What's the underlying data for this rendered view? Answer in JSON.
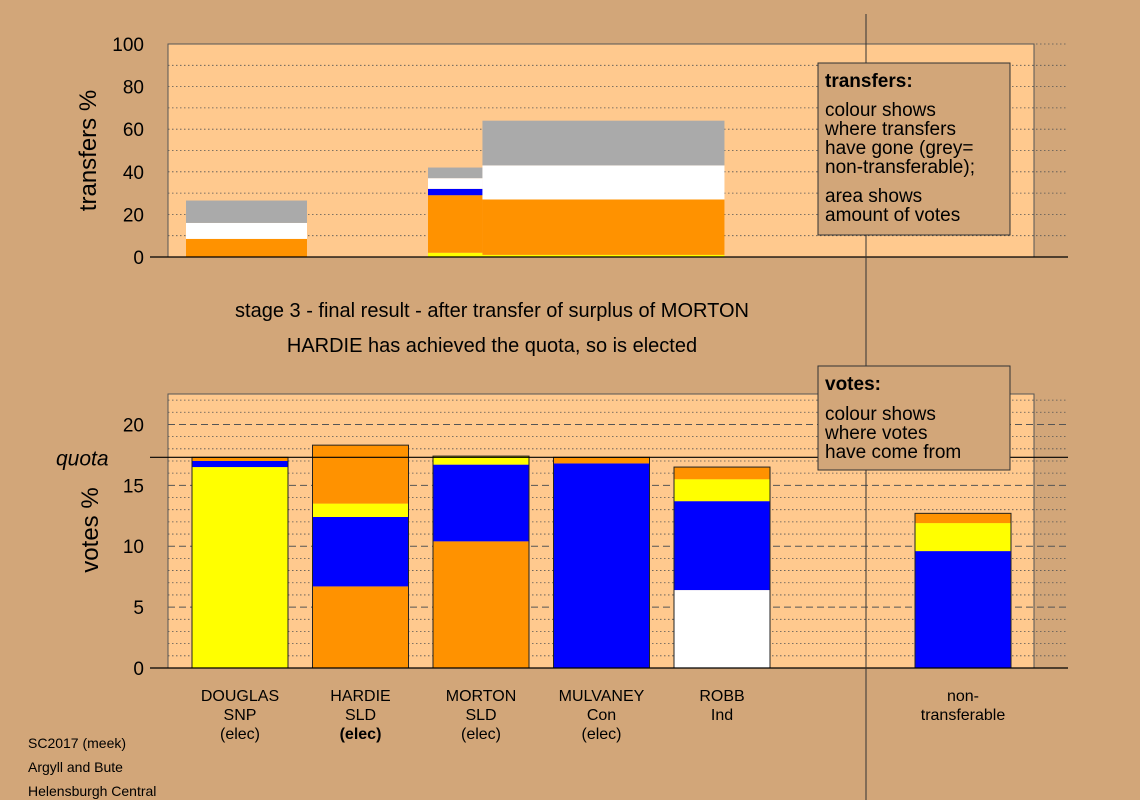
{
  "colors": {
    "background": "#d2a679",
    "plot_bg": "#ffc98e",
    "SNP": "#ffff00",
    "SLD": "#ff9200",
    "Con": "#0000ff",
    "Ind": "#ffffff",
    "non_transferable": "#aaaaaa"
  },
  "captions": {
    "stage": "stage 3 - final result - after transfer of surplus of MORTON",
    "elected": "HARDIE has achieved the quota, so is elected"
  },
  "footer": {
    "line1": "SC2017 (meek)",
    "line2": "Argyll and Bute",
    "line3": "Helensburgh Central"
  },
  "chart_data": [
    {
      "type": "bar",
      "ylabel": "transfers %",
      "ylim": [
        0,
        100
      ],
      "yticks": [
        "0",
        "20",
        "40",
        "60",
        "80",
        "100"
      ],
      "legend": {
        "title": "transfers:",
        "lines": [
          "colour shows",
          "where transfers",
          "have gone (grey=",
          "non-transferable);",
          "area shows",
          "amount of votes"
        ]
      },
      "note": "stacked transfer blocks; each block spans part of the candidate axis",
      "blocks": [
        {
          "x_from": 0,
          "x_to": 1,
          "segments": [
            {
              "party": "SLD",
              "value": 8.5
            },
            {
              "party": "Ind",
              "value": 7.5
            },
            {
              "party": "non_transferable",
              "value": 10.5
            }
          ]
        },
        {
          "x_from": 2,
          "x_to": 2.45,
          "segments": [
            {
              "party": "SNP",
              "value": 2
            },
            {
              "party": "SLD",
              "value": 27
            },
            {
              "party": "Con",
              "value": 3
            },
            {
              "party": "Ind",
              "value": 5
            },
            {
              "party": "non_transferable",
              "value": 5
            }
          ]
        },
        {
          "x_from": 2.45,
          "x_to": 4.45,
          "segments": [
            {
              "party": "SNP",
              "value": 1
            },
            {
              "party": "SLD",
              "value": 26
            },
            {
              "party": "Ind",
              "value": 16
            },
            {
              "party": "non_transferable",
              "value": 21
            }
          ]
        }
      ]
    },
    {
      "type": "bar",
      "ylabel": "votes %",
      "ylim": [
        0,
        22.5
      ],
      "yticks": [
        "0",
        "5",
        "10",
        "15",
        "20"
      ],
      "quota": 17.3,
      "quota_label": "quota",
      "legend": {
        "title": "votes:",
        "lines": [
          "colour shows",
          "where votes",
          "have come from"
        ]
      },
      "categories": [
        {
          "name": "DOUGLAS",
          "party": "SNP",
          "status": "(elec)",
          "bold": false
        },
        {
          "name": "HARDIE",
          "party": "SLD",
          "status": "(elec)",
          "bold": true
        },
        {
          "name": "MORTON",
          "party": "SLD",
          "status": "(elec)",
          "bold": false
        },
        {
          "name": "MULVANEY",
          "party": "Con",
          "status": "(elec)",
          "bold": false
        },
        {
          "name": "ROBB",
          "party": "Ind",
          "status": "",
          "bold": false
        },
        {
          "name": "non-",
          "party": "transferable",
          "status": "",
          "bold": false
        }
      ],
      "bars": [
        [
          {
            "party": "SNP",
            "value": 16.5
          },
          {
            "party": "Con",
            "value": 0.5
          },
          {
            "party": "SLD",
            "value": 0.3
          }
        ],
        [
          {
            "party": "SLD",
            "value": 6.7
          },
          {
            "party": "Con",
            "value": 5.7
          },
          {
            "party": "SNP",
            "value": 1.1
          },
          {
            "party": "SLD",
            "value": 4.8
          }
        ],
        [
          {
            "party": "SLD",
            "value": 10.4
          },
          {
            "party": "Con",
            "value": 6.3
          },
          {
            "party": "SNP",
            "value": 0.7
          }
        ],
        [
          {
            "party": "Con",
            "value": 16.8
          },
          {
            "party": "SLD",
            "value": 0.5
          }
        ],
        [
          {
            "party": "Ind",
            "value": 6.4
          },
          {
            "party": "Con",
            "value": 7.3
          },
          {
            "party": "SNP",
            "value": 1.8
          },
          {
            "party": "SLD",
            "value": 1.0
          }
        ],
        [
          {
            "party": "Con",
            "value": 9.6
          },
          {
            "party": "SNP",
            "value": 2.3
          },
          {
            "party": "SLD",
            "value": 0.8
          }
        ]
      ]
    }
  ]
}
